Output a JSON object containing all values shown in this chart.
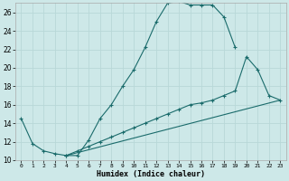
{
  "xlabel": "Humidex (Indice chaleur)",
  "background_color": "#cde8e8",
  "grid_color": "#b8d8d8",
  "line_color": "#1a6b6b",
  "xlim": [
    -0.5,
    23.5
  ],
  "ylim": [
    10,
    27
  ],
  "yticks": [
    10,
    12,
    14,
    16,
    18,
    20,
    22,
    24,
    26
  ],
  "xtick_labels": [
    "0",
    "1",
    "2",
    "3",
    "4",
    "5",
    "6",
    "7",
    "8",
    "9",
    "10",
    "11",
    "12",
    "13",
    "14",
    "15",
    "16",
    "17",
    "18",
    "19",
    "20",
    "21",
    "22",
    "23"
  ],
  "xtick_positions": [
    0,
    1,
    2,
    3,
    4,
    5,
    6,
    7,
    8,
    9,
    10,
    11,
    12,
    13,
    14,
    15,
    16,
    17,
    18,
    19,
    20,
    21,
    22,
    23
  ],
  "line1_x": [
    0,
    1,
    2,
    3,
    4,
    5,
    6,
    7,
    8,
    9,
    10,
    11,
    12,
    13,
    14,
    15,
    16,
    17,
    18,
    19
  ],
  "line1_y": [
    14.5,
    11.8,
    11.0,
    10.7,
    10.5,
    10.5,
    12.2,
    14.5,
    16.0,
    18.0,
    19.8,
    22.2,
    25.0,
    27.0,
    27.2,
    26.8,
    26.8,
    26.8,
    25.5,
    22.2
  ],
  "line2_x": [
    4,
    5,
    6,
    7,
    8,
    9,
    10,
    11,
    12,
    13,
    14,
    15,
    16,
    17,
    18,
    19,
    20,
    21,
    22,
    23
  ],
  "line2_y": [
    10.5,
    11.0,
    11.5,
    12.0,
    12.5,
    13.0,
    13.5,
    14.0,
    14.5,
    15.0,
    15.5,
    16.0,
    16.2,
    16.5,
    17.0,
    17.5,
    21.2,
    19.8,
    17.0,
    16.5
  ],
  "line3_x": [
    4,
    23
  ],
  "line3_y": [
    10.5,
    16.5
  ]
}
